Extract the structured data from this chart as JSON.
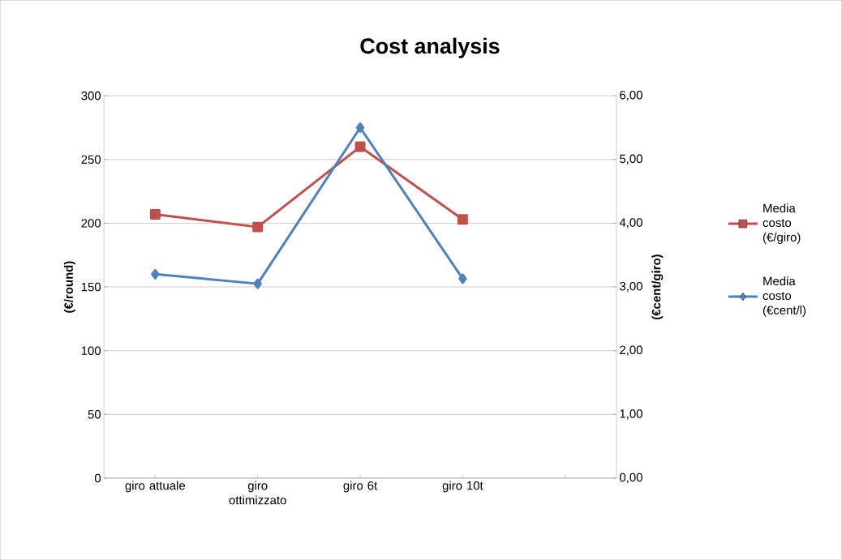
{
  "chart_data": {
    "type": "line",
    "title": "Cost analysis",
    "categories": [
      "giro attuale",
      "giro ottimizzato",
      "giro 6t",
      "giro  10t",
      null
    ],
    "ylabel": "(€/round)",
    "y2label": "(€cent/giro)",
    "ylim": [
      0,
      300
    ],
    "yticks": [
      0,
      50,
      100,
      150,
      200,
      250,
      300
    ],
    "y2lim": [
      0,
      6
    ],
    "y2ticks": [
      {
        "value": 0,
        "label": "0,00"
      },
      {
        "value": 1,
        "label": "1,00"
      },
      {
        "value": 2,
        "label": "2,00"
      },
      {
        "value": 3,
        "label": "3,00"
      },
      {
        "value": 4,
        "label": "4,00"
      },
      {
        "value": 5,
        "label": "5,00"
      },
      {
        "value": 6,
        "label": "6,00"
      }
    ],
    "grid": "y",
    "legend": "right",
    "series": [
      {
        "name": "Media costo (€/giro)",
        "color": "#c0504d",
        "marker": "square",
        "values": [
          207,
          197,
          260,
          203,
          null
        ]
      },
      {
        "name": "Media costo (€cent/l)",
        "color": "#4f81bd",
        "marker": "diamond",
        "axis": "y2",
        "values": [
          3.2,
          3.05,
          5.5,
          3.13,
          null
        ]
      }
    ]
  }
}
